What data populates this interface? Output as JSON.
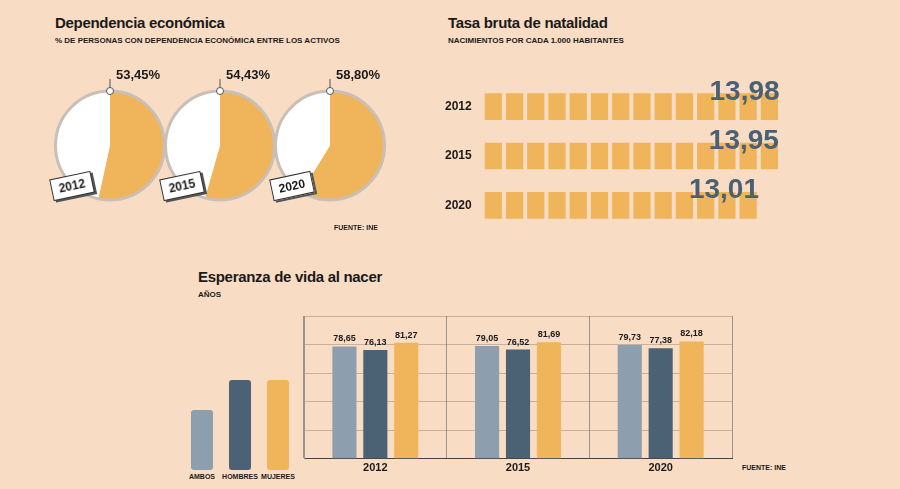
{
  "chart_data": [
    {
      "type": "pie",
      "title": "Dependencia económica",
      "subtitle": "% DE PERSONAS CON DEPENDENCIA ECONÓMICA ENTRE LOS ACTIVOS",
      "source": "FUENTE: INE",
      "data_labels": true,
      "pies": [
        {
          "category": "2012",
          "values": [
            53.45,
            46.55
          ],
          "value_labels": [
            "53,45%",
            null
          ],
          "colors": [
            "#f0b45a",
            "#ffffff"
          ]
        },
        {
          "category": "2015",
          "values": [
            54.43,
            45.57
          ],
          "value_labels": [
            "54,43%",
            null
          ],
          "colors": [
            "#f0b45a",
            "#ffffff"
          ]
        },
        {
          "category": "2020",
          "values": [
            58.8,
            41.2
          ],
          "value_labels": [
            "58,80%",
            null
          ],
          "colors": [
            "#f0b45a",
            "#ffffff"
          ]
        }
      ]
    },
    {
      "type": "bar",
      "orientation": "horizontal",
      "title": "Tasa bruta de natalidad",
      "subtitle": "NACIMIENTOS POR CADA 1.000 HABITANTES",
      "categories": [
        "2012",
        "2015",
        "2020"
      ],
      "values": [
        13.98,
        13.95,
        13.01
      ],
      "value_labels": [
        "13,98",
        "13,95",
        "13,01"
      ],
      "data_labels": true,
      "color": "#f0b45a",
      "xlim": [
        0,
        14
      ],
      "xticks": [
        0,
        1,
        2,
        3,
        4,
        5,
        6,
        7,
        8,
        9,
        10,
        11,
        12,
        13,
        14
      ],
      "grid": true,
      "tick_labels": "y"
    },
    {
      "type": "bar",
      "title": "Esperanza de vida al nacer",
      "subtitle": "AÑOS",
      "source": "FUENTE: INE",
      "categories": [
        "2012",
        "2015",
        "2020"
      ],
      "series": [
        {
          "name": "AMBOS",
          "color": "#8d9fae",
          "values": [
            78.65,
            79.05,
            79.73
          ],
          "value_labels": [
            "78,65",
            "79,05",
            "79,73"
          ]
        },
        {
          "name": "HOMBRES",
          "color": "#4b6275",
          "values": [
            76.13,
            76.52,
            77.38
          ],
          "value_labels": [
            "76,13",
            "76,52",
            "77,38"
          ]
        },
        {
          "name": "MUJERES",
          "color": "#f0b45a",
          "values": [
            81.27,
            81.69,
            82.18
          ],
          "value_labels": [
            "81,27",
            "81,69",
            "82,18"
          ]
        }
      ],
      "ylim": [
        0,
        100
      ],
      "yticks": [
        0,
        20,
        40,
        60,
        80,
        100
      ],
      "grid": true,
      "tick_labels": "x",
      "data_labels": true,
      "legend": "left"
    }
  ]
}
